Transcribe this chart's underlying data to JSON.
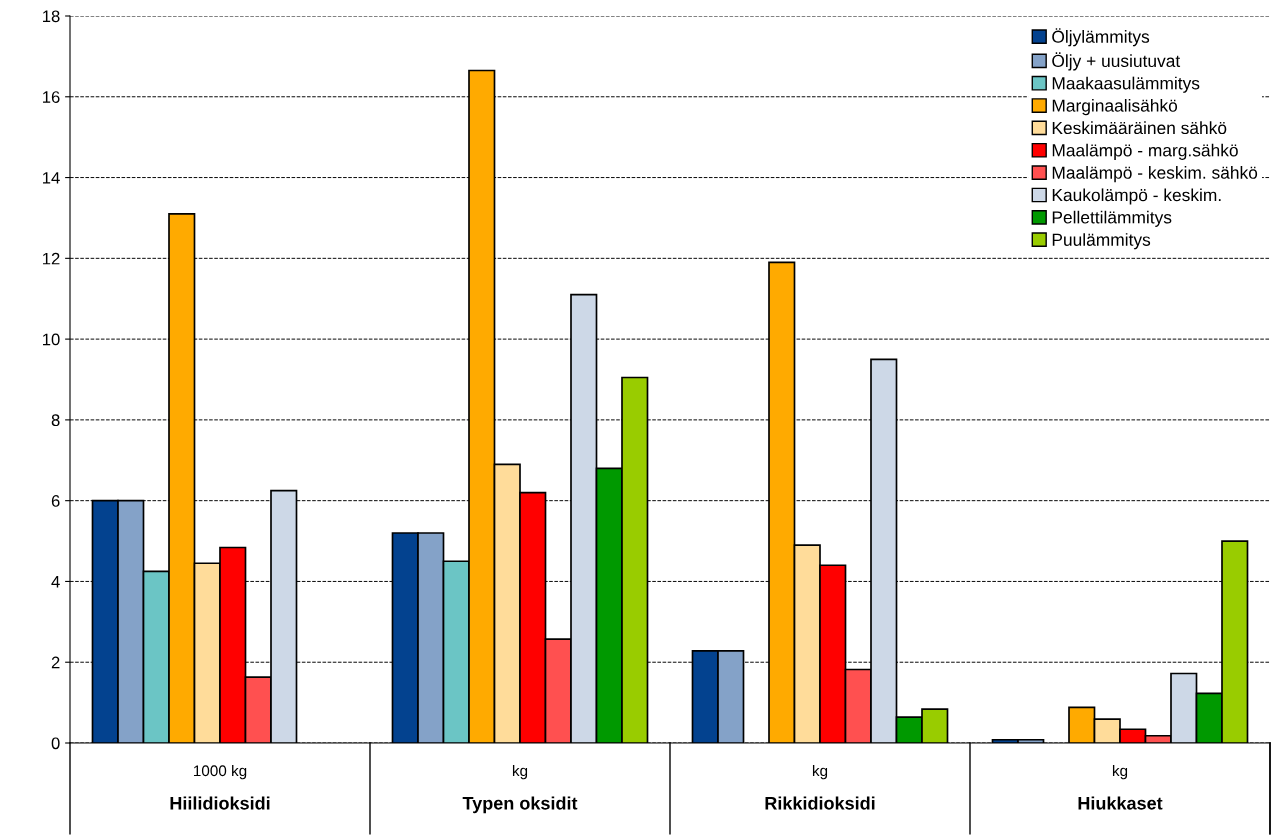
{
  "chart_data": {
    "type": "bar",
    "categories": [
      "Hiilidioksidi",
      "Typen oksidit",
      "Rikkidioksidi",
      "Hiukkaset"
    ],
    "annotations": [
      "1000 kg",
      "kg",
      "kg",
      "kg"
    ],
    "series": [
      {
        "name": "Öljylämmitys",
        "color": "#03428f",
        "values": [
          6.0,
          5.2,
          2.28,
          0.08
        ]
      },
      {
        "name": "Öljy + uusiutuvat",
        "color": "#84a2c8",
        "values": [
          6.0,
          5.2,
          2.28,
          0.08
        ]
      },
      {
        "name": "Maakaasulämmitys",
        "color": "#6bc5c5",
        "values": [
          4.25,
          4.5,
          null,
          null
        ]
      },
      {
        "name": "Marginaalisähkö",
        "color": "#ffaa00",
        "values": [
          13.1,
          16.65,
          11.9,
          0.88
        ]
      },
      {
        "name": "Keskimääräinen sähkö",
        "color": "#ffdc9a",
        "values": [
          4.45,
          6.9,
          4.9,
          0.59
        ]
      },
      {
        "name": "Maalämpö - marg.sähkö",
        "color": "#ff0000",
        "values": [
          4.84,
          6.2,
          4.4,
          0.34
        ]
      },
      {
        "name": "Maalämpö - keskim. sähkö",
        "color": "#ff5050",
        "values": [
          1.63,
          2.57,
          1.82,
          0.18
        ]
      },
      {
        "name": "Kaukolämpö - keskim.",
        "color": "#cdd8e7",
        "values": [
          6.25,
          11.1,
          9.5,
          1.72
        ]
      },
      {
        "name": "Pellettilämmitys",
        "color": "#009900",
        "values": [
          null,
          6.8,
          0.64,
          1.23
        ]
      },
      {
        "name": "Puulämmitys",
        "color": "#99cc00",
        "values": [
          null,
          9.05,
          0.84,
          5.0
        ]
      }
    ],
    "ylim": [
      0,
      18
    ],
    "yticks": [
      0,
      2,
      4,
      6,
      8,
      10,
      12,
      14,
      16,
      18
    ],
    "grid": "y",
    "legend": "top right"
  }
}
